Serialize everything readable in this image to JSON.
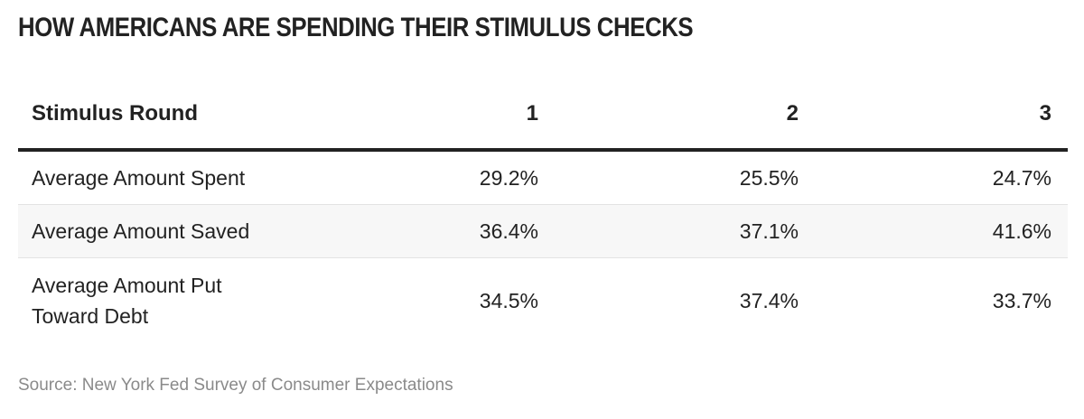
{
  "chart_data": {
    "type": "table",
    "title": "HOW AMERICANS ARE SPENDING THEIR STIMULUS CHECKS",
    "columns": [
      "Stimulus Round",
      "1",
      "2",
      "3"
    ],
    "rows": [
      {
        "label": "Average Amount Spent",
        "values": [
          "29.2%",
          "25.5%",
          "24.7%"
        ]
      },
      {
        "label": "Average Amount Saved",
        "values": [
          "36.4%",
          "37.1%",
          "41.6%"
        ]
      },
      {
        "label": "Average Amount Put Toward Debt",
        "values": [
          "34.5%",
          "37.4%",
          "33.7%"
        ]
      }
    ],
    "source": "Source: New York Fed Survey of Consumer Expectations"
  }
}
